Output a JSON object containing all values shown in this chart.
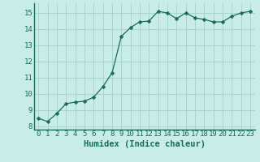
{
  "x": [
    0,
    1,
    2,
    3,
    4,
    5,
    6,
    7,
    8,
    9,
    10,
    11,
    12,
    13,
    14,
    15,
    16,
    17,
    18,
    19,
    20,
    21,
    22,
    23
  ],
  "y": [
    8.5,
    8.3,
    8.8,
    9.4,
    9.5,
    9.55,
    9.8,
    10.45,
    11.3,
    13.55,
    14.1,
    14.45,
    14.5,
    15.1,
    15.0,
    14.65,
    15.0,
    14.7,
    14.6,
    14.45,
    14.45,
    14.8,
    15.0,
    15.1
  ],
  "line_color": "#1a6b5a",
  "marker": "D",
  "marker_size": 2.5,
  "bg_color": "#c8ede8",
  "grid_color": "#a8d5ce",
  "xlabel": "Humidex (Indice chaleur)",
  "xlim": [
    -0.5,
    23.5
  ],
  "ylim": [
    7.8,
    15.6
  ],
  "yticks": [
    8,
    9,
    10,
    11,
    12,
    13,
    14,
    15
  ],
  "xticks": [
    0,
    1,
    2,
    3,
    4,
    5,
    6,
    7,
    8,
    9,
    10,
    11,
    12,
    13,
    14,
    15,
    16,
    17,
    18,
    19,
    20,
    21,
    22,
    23
  ],
  "tick_fontsize": 6.5,
  "xlabel_fontsize": 7.5,
  "label_color": "#1a6b5a"
}
